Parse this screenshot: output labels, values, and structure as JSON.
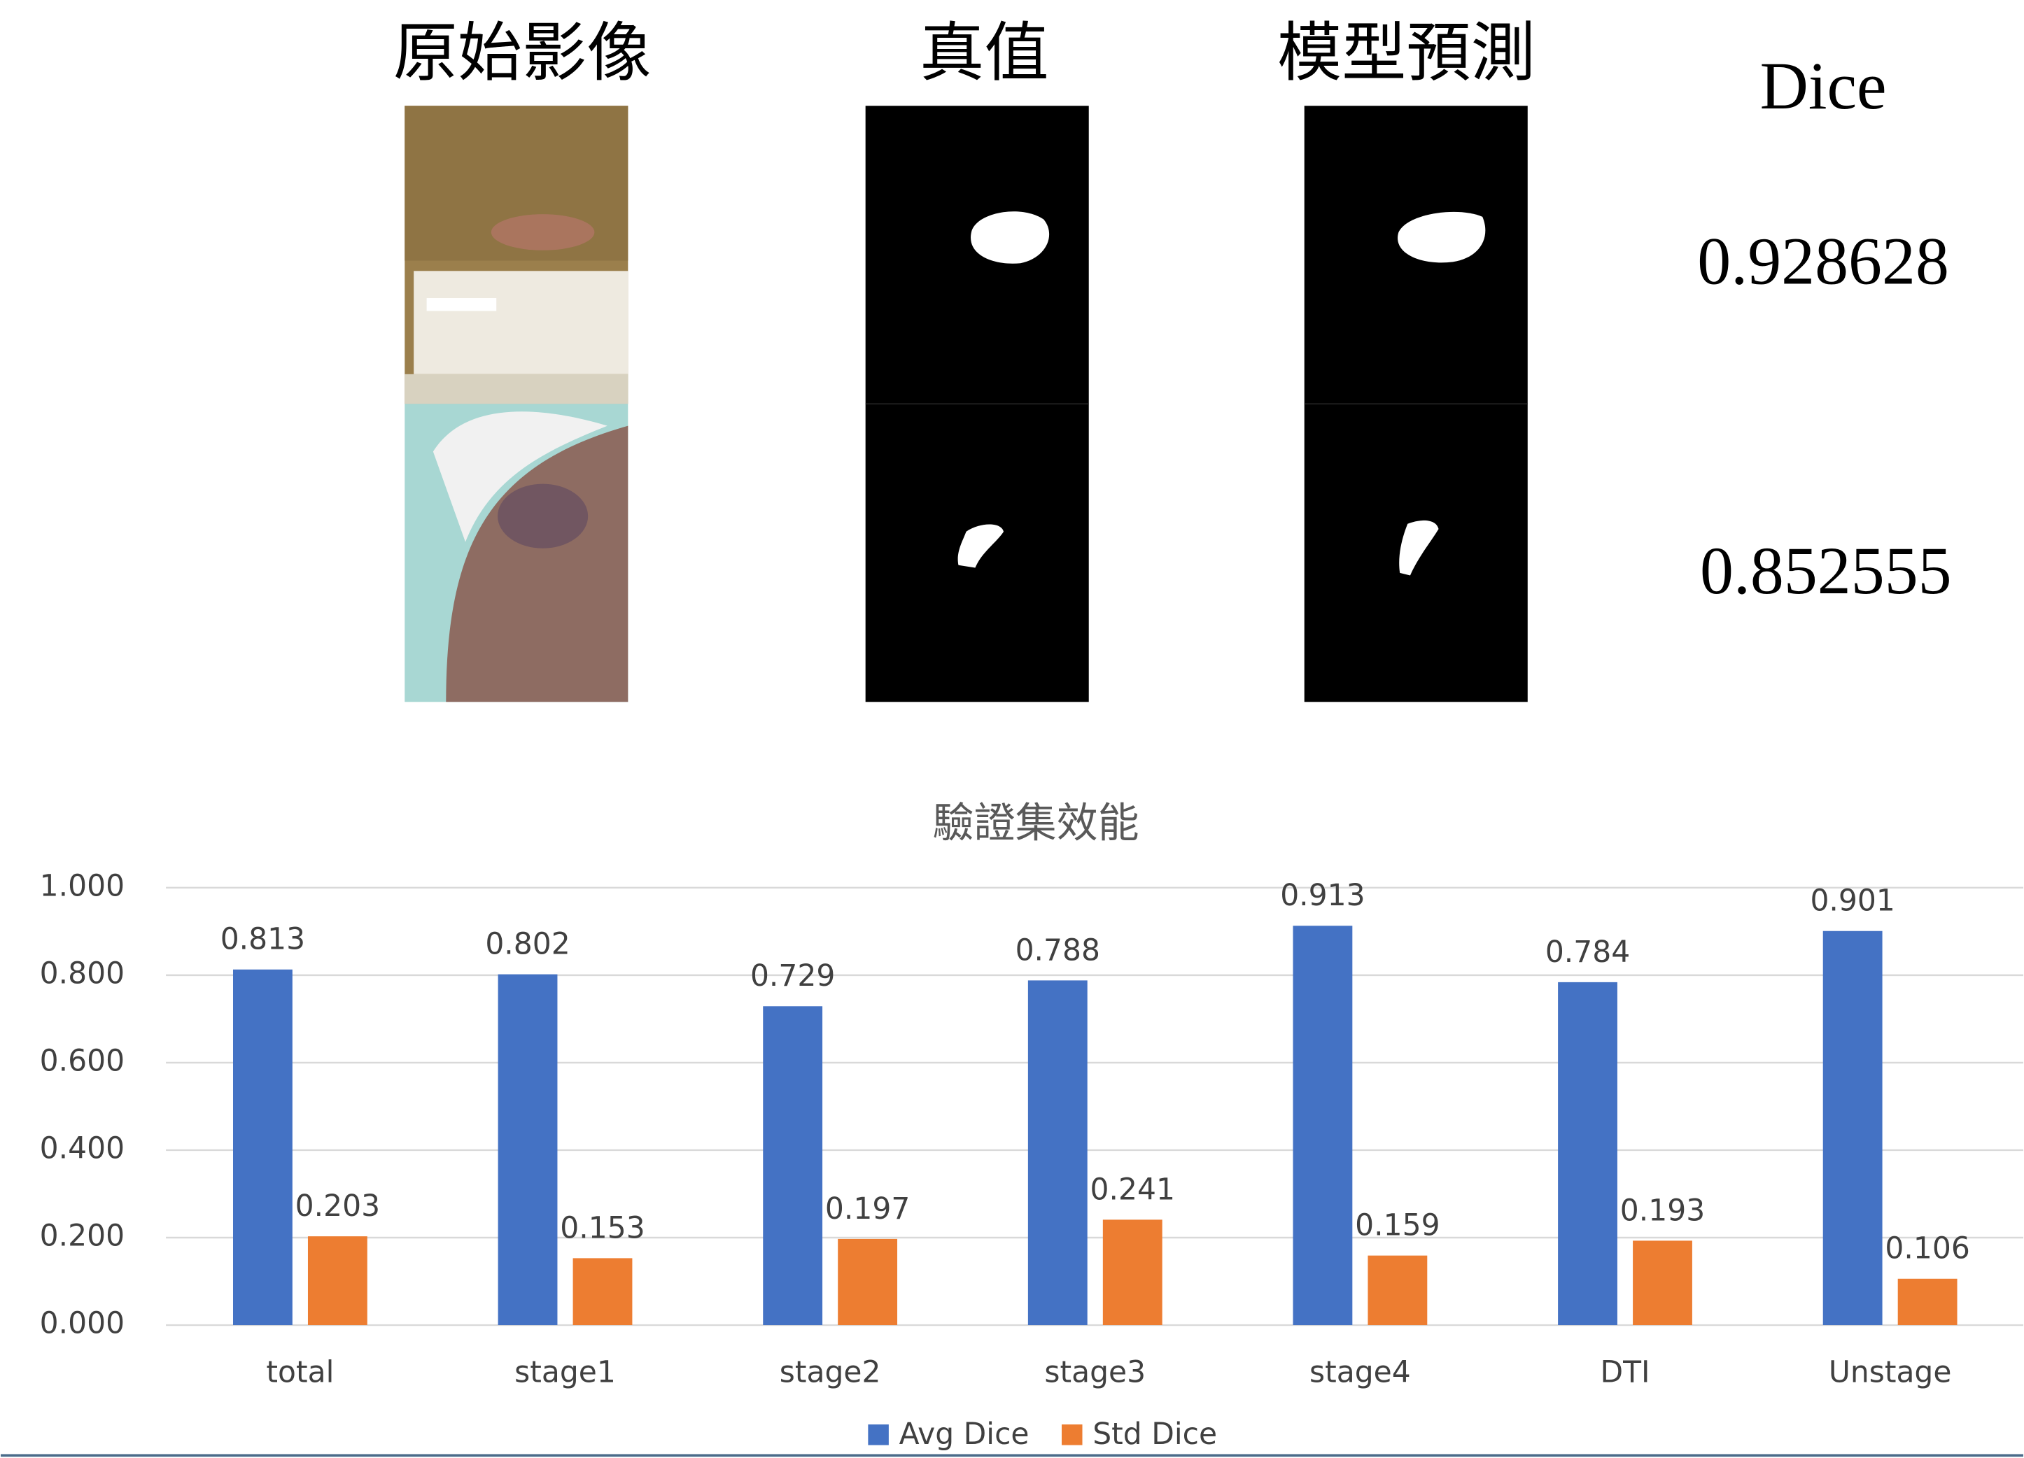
{
  "header": {
    "columns": [
      "原始影像",
      "真值",
      "模型預測",
      "Dice"
    ]
  },
  "rows": [
    {
      "dice": "0.928628"
    },
    {
      "dice": "0.852555"
    }
  ],
  "chart_data": {
    "type": "bar",
    "title": "驗證集效能",
    "categories": [
      "total",
      "stage1",
      "stage2",
      "stage3",
      "stage4",
      "DTI",
      "Unstage"
    ],
    "series": [
      {
        "name": "Avg Dice",
        "color": "#4472c4",
        "values": [
          0.813,
          0.802,
          0.729,
          0.788,
          0.913,
          0.784,
          0.901
        ]
      },
      {
        "name": "Std Dice",
        "color": "#ed7d31",
        "values": [
          0.203,
          0.153,
          0.197,
          0.241,
          0.159,
          0.193,
          0.106
        ]
      }
    ],
    "ylim": [
      0,
      1
    ],
    "yticks": [
      {
        "value": 0,
        "label": "0.000"
      },
      {
        "value": 0.2,
        "label": "0.200"
      },
      {
        "value": 0.4,
        "label": "0.400"
      },
      {
        "value": 0.6,
        "label": "0.600"
      },
      {
        "value": 0.8,
        "label": "0.800"
      },
      {
        "value": 1,
        "label": "1.000"
      }
    ],
    "grid": true,
    "legend": "bottom"
  }
}
